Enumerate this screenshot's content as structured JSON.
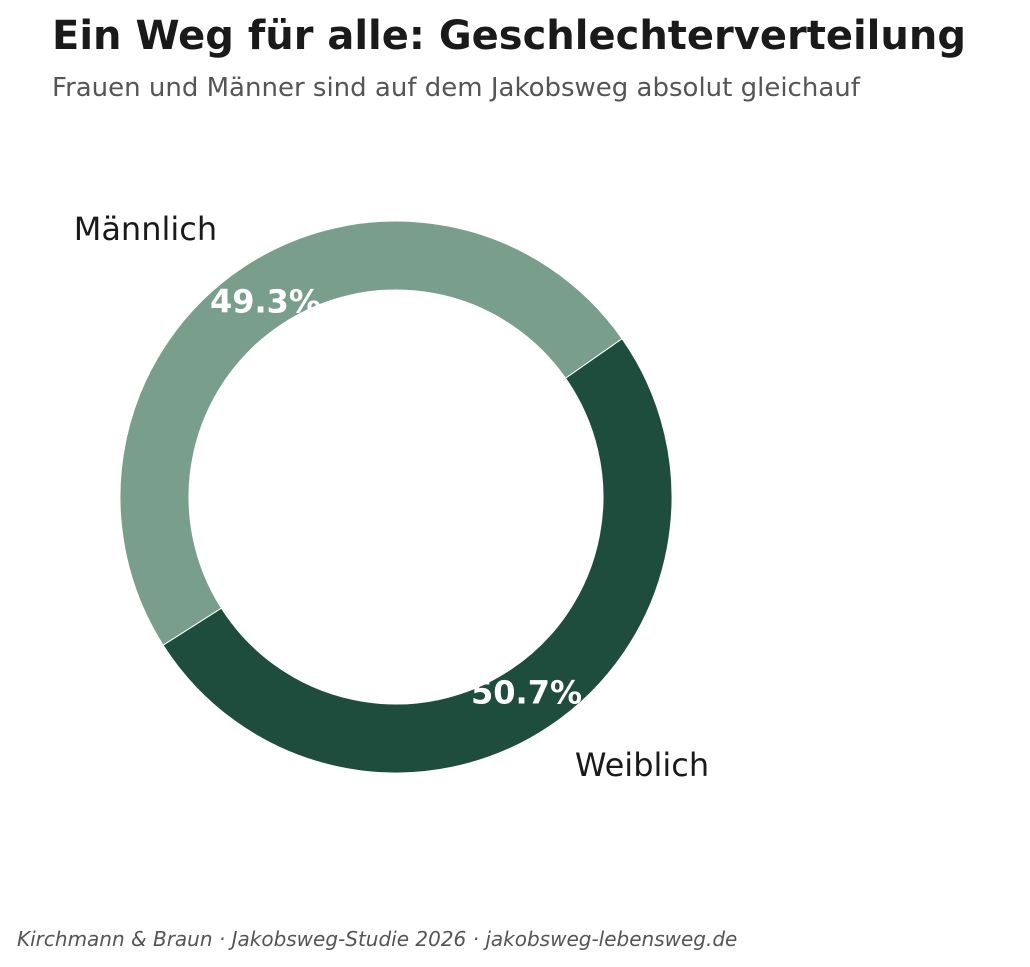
{
  "header": {
    "title": "Ein Weg für alle: Geschlechterverteilung",
    "subtitle": "Frauen und Männer sind auf dem Jakobsweg absolut gleichauf"
  },
  "chart_data": {
    "type": "pie",
    "style": "donut",
    "labels": [
      "Männlich",
      "Weiblich"
    ],
    "values": [
      49.3,
      50.7
    ],
    "value_labels": [
      "49.3%",
      "50.7%"
    ],
    "colors": [
      "#7a9e8c",
      "#1f4d3d"
    ],
    "start_angle_deg": 35,
    "direction": "counterclockwise"
  },
  "footer": {
    "source": "Kirchmann & Braun · Jakobsweg-Studie 2026 · jakobsweg-lebensweg.de"
  }
}
